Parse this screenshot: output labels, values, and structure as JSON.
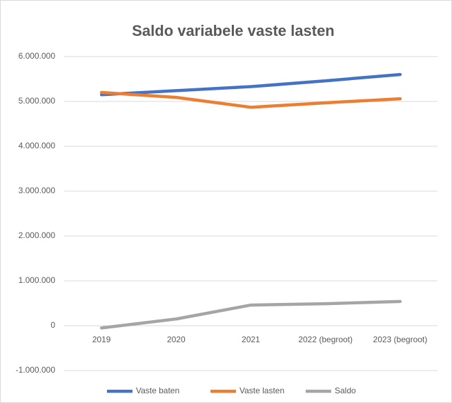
{
  "chart_data": {
    "type": "line",
    "title": "Saldo variabele vaste lasten",
    "categories": [
      "2019",
      "2020",
      "2021",
      "2022 (begroot)",
      "2023 (begroot)"
    ],
    "series": [
      {
        "name": "Vaste baten",
        "color": "#4472c4",
        "values": [
          5150000,
          5240000,
          5330000,
          5460000,
          5600000
        ]
      },
      {
        "name": "Vaste lasten",
        "color": "#ed7d31",
        "values": [
          5200000,
          5090000,
          4870000,
          4970000,
          5060000
        ]
      },
      {
        "name": "Saldo",
        "color": "#a5a5a5",
        "values": [
          -50000,
          150000,
          460000,
          490000,
          540000
        ]
      }
    ],
    "ylim": [
      -1000000,
      6000000
    ],
    "yticks": [
      {
        "value": -1000000,
        "label": "-1.000.000"
      },
      0,
      {
        "value": 1000000,
        "label": "1.000.000"
      },
      {
        "value": 2000000,
        "label": "2.000.000"
      },
      {
        "value": 3000000,
        "label": "3.000.000"
      },
      {
        "value": 4000000,
        "label": "4.000.000"
      },
      {
        "value": 5000000,
        "label": "5.000.000"
      },
      {
        "value": 6000000,
        "label": "6.000.000"
      }
    ],
    "grid": true,
    "legend": "bottom"
  }
}
